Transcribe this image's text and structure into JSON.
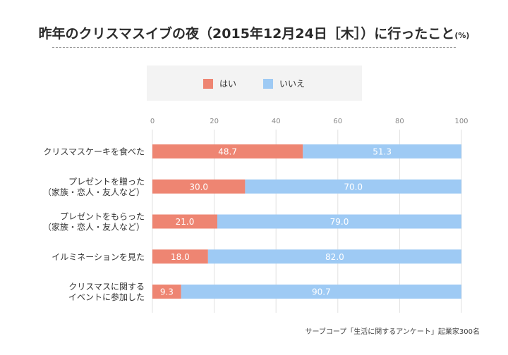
{
  "title": {
    "main": "昨年のクリスマスイブの夜（2015年12月24日［木］）に行ったこと",
    "unit": "(%)"
  },
  "colors": {
    "yes": "#ee8572",
    "no": "#9ecaf4",
    "legend_bg": "#f3f3f3",
    "grid": "#e2e2e2"
  },
  "legend": {
    "items": [
      {
        "label": "はい",
        "color": "#ee8572"
      },
      {
        "label": "いいえ",
        "color": "#9ecaf4"
      }
    ]
  },
  "source": "サーブコープ「生活に関するアンケート」起業家300名",
  "chart_data": {
    "type": "bar",
    "orientation": "horizontal",
    "stacked": true,
    "title": "昨年のクリスマスイブの夜（2015年12月24日［木］）に行ったこと(%)",
    "xlabel": "",
    "ylabel": "",
    "xlim": [
      0,
      100
    ],
    "xticks": [
      0,
      20,
      40,
      60,
      80,
      100
    ],
    "grid": true,
    "legend_position": "top-center",
    "categories": [
      [
        "クリスマスケーキを食べた"
      ],
      [
        "プレゼントを贈った",
        "（家族・恋人・友人など）"
      ],
      [
        "プレゼントをもらった",
        "（家族・恋人・友人など）"
      ],
      [
        "イルミネーションを見た"
      ],
      [
        "クリスマスに関する",
        "イベントに参加した"
      ]
    ],
    "series": [
      {
        "name": "はい",
        "values": [
          48.7,
          30.0,
          21.0,
          18.0,
          9.3
        ]
      },
      {
        "name": "いいえ",
        "values": [
          51.3,
          70.0,
          79.0,
          82.0,
          90.7
        ]
      }
    ]
  }
}
